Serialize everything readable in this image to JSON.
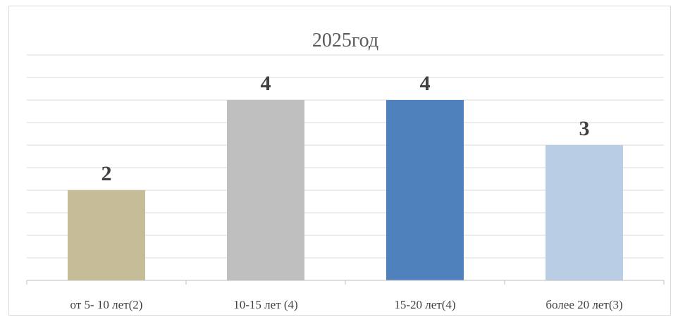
{
  "chart_data": {
    "type": "bar",
    "title": "2025год",
    "categories": [
      "от 5- 10 лет(2)",
      "10-15 лет (4)",
      "15-20 лет(4)",
      "более 20 лет(3)"
    ],
    "values": [
      2,
      4,
      4,
      3
    ],
    "colors": [
      "#c4bd97",
      "#bfbfbf",
      "#4f81bd",
      "#b9cde5"
    ],
    "data_labels": [
      "2",
      "4",
      "4",
      "3"
    ],
    "ylim": [
      0,
      5
    ],
    "grid": true,
    "legend": "none"
  }
}
